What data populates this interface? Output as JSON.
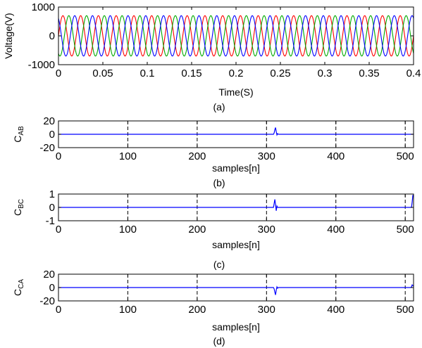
{
  "chart_data": [
    {
      "panel": "(a)",
      "type": "line",
      "caption": "(a)",
      "xlabel": "Time(S)",
      "ylabel": "Voltage(V)",
      "xlim": [
        0,
        0.4
      ],
      "ylim": [
        -1000,
        1000
      ],
      "xticks": [
        0,
        0.05,
        0.1,
        0.15,
        0.2,
        0.25,
        0.3,
        0.35,
        0.4
      ],
      "xtick_labels": [
        "0",
        "0.05",
        "0.1",
        "0.15",
        "0.2",
        "0.25",
        "0.3",
        "0.35",
        "0.4"
      ],
      "yticks": [
        -1000,
        0,
        1000
      ],
      "ytick_labels": [
        "-1000",
        "0",
        "1000"
      ],
      "grid": false,
      "signal": {
        "kind": "three-phase sine",
        "amplitude": 700,
        "frequency_hz": 50,
        "phase_shift_deg": 120
      },
      "series": [
        {
          "color": "#ff0000",
          "phase_deg": 0
        },
        {
          "color": "#00aa00",
          "phase_deg": -120
        },
        {
          "color": "#0000ff",
          "phase_deg": 120
        }
      ]
    },
    {
      "panel": "(b)",
      "type": "line",
      "caption": "(b)",
      "xlabel": "samples[n]",
      "ylabel_main": "C",
      "ylabel_sub": "AB",
      "xlim": [
        0,
        512
      ],
      "ylim": [
        -20,
        20
      ],
      "xticks": [
        0,
        100,
        200,
        300,
        400,
        500
      ],
      "xtick_labels": [
        "0",
        "100",
        "200",
        "300",
        "400",
        "500"
      ],
      "yticks": [
        -20,
        0,
        20
      ],
      "ytick_labels": [
        "-20",
        "0",
        "20"
      ],
      "vgrid": [
        100,
        200,
        300,
        400,
        500
      ],
      "color": "#0000ff",
      "x": [
        0,
        310,
        311,
        312,
        313,
        314,
        315,
        316,
        317,
        318,
        512
      ],
      "y": [
        0,
        0,
        2,
        7,
        10,
        4,
        -1,
        1,
        0,
        0,
        0
      ]
    },
    {
      "panel": "(c)",
      "type": "line",
      "caption": "(c)",
      "xlabel": "samples[n]",
      "ylabel_main": "C",
      "ylabel_sub": "BC",
      "xlim": [
        0,
        512
      ],
      "ylim": [
        -1,
        1
      ],
      "xticks": [
        0,
        100,
        200,
        300,
        400,
        500
      ],
      "xtick_labels": [
        "0",
        "100",
        "200",
        "300",
        "400",
        "500"
      ],
      "yticks": [
        -1,
        0,
        1
      ],
      "ytick_labels": [
        "-1",
        "0",
        "1"
      ],
      "vgrid": [
        100,
        200,
        300,
        400,
        500
      ],
      "color": "#0000ff",
      "x": [
        0,
        310,
        311,
        312,
        313,
        314,
        315,
        316,
        317,
        318,
        509,
        510,
        511,
        512
      ],
      "y": [
        0,
        0,
        0.3,
        0.6,
        0.2,
        -0.25,
        0.1,
        0,
        0,
        0,
        0,
        0.4,
        0.9,
        0.9
      ]
    },
    {
      "panel": "(d)",
      "type": "line",
      "caption": "(d)",
      "xlabel": "samples[n]",
      "ylabel_main": "C",
      "ylabel_sub": "CA",
      "xlim": [
        0,
        512
      ],
      "ylim": [
        -20,
        20
      ],
      "xticks": [
        0,
        100,
        200,
        300,
        400,
        500
      ],
      "xtick_labels": [
        "0",
        "100",
        "200",
        "300",
        "400",
        "500"
      ],
      "yticks": [
        -20,
        0,
        20
      ],
      "ytick_labels": [
        "-20",
        "0",
        "20"
      ],
      "vgrid": [
        100,
        200,
        300,
        400,
        500
      ],
      "color": "#0000ff",
      "x": [
        0,
        310,
        311,
        312,
        313,
        314,
        315,
        316,
        317,
        318,
        508,
        509,
        510,
        511,
        512
      ],
      "y": [
        0,
        0,
        -2,
        -7,
        -11,
        -4,
        1,
        -1,
        0,
        0,
        0,
        1,
        4,
        3,
        2
      ]
    }
  ]
}
